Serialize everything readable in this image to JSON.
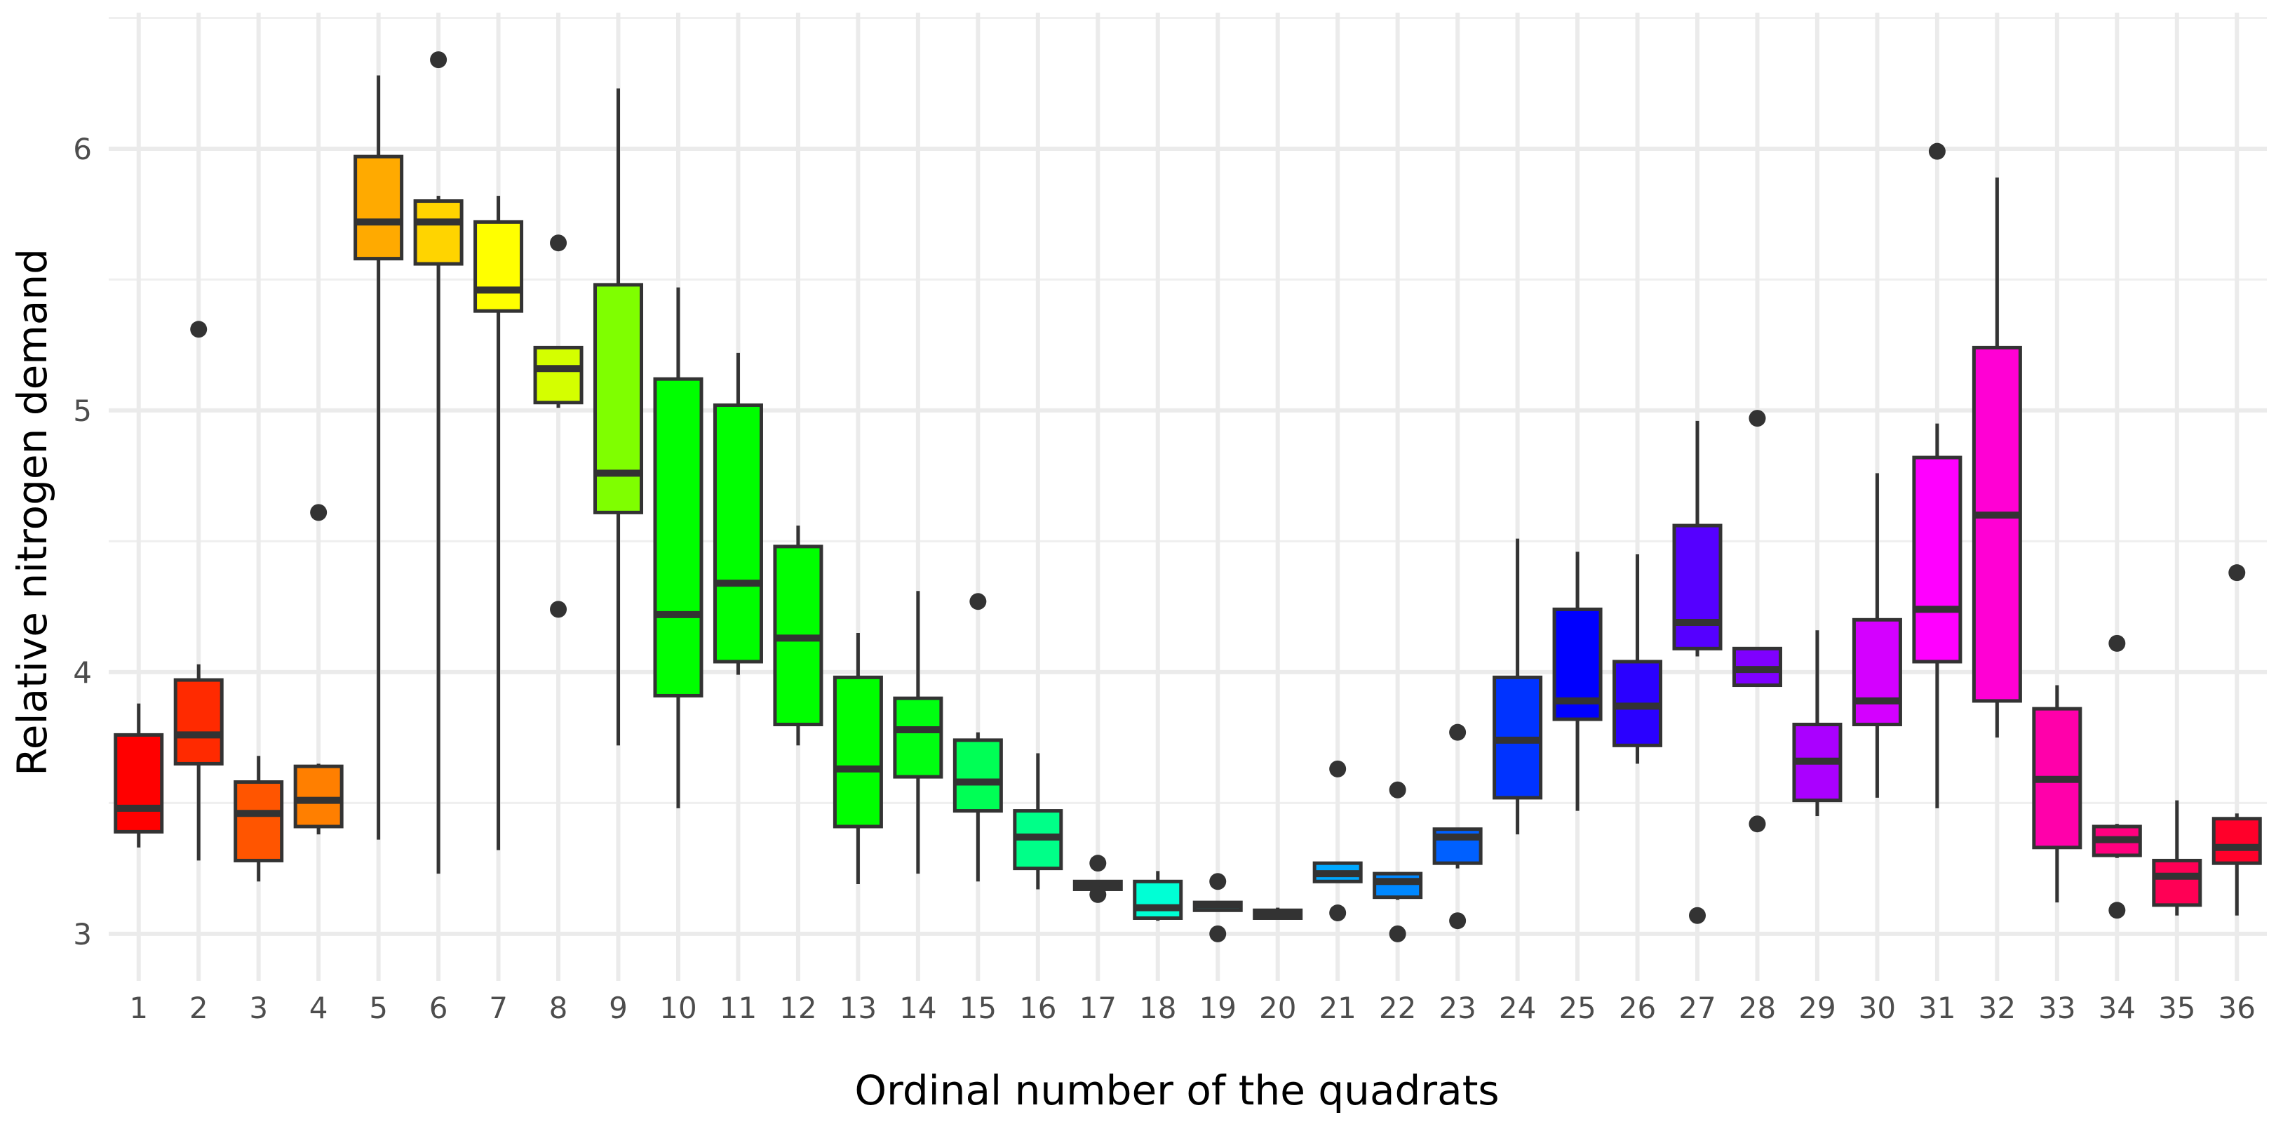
{
  "chart_data": {
    "type": "boxplot",
    "xlabel": "Ordinal number of the quadrats",
    "ylabel": "Relative nitrogen demand",
    "ylim": [
      2.82,
      6.52
    ],
    "yticks": [
      3,
      4,
      5,
      6
    ],
    "grid": true,
    "legend": "none",
    "categories": [
      "1",
      "2",
      "3",
      "4",
      "5",
      "6",
      "7",
      "8",
      "9",
      "10",
      "11",
      "12",
      "13",
      "14",
      "15",
      "16",
      "17",
      "18",
      "19",
      "20",
      "21",
      "22",
      "23",
      "24",
      "25",
      "26",
      "27",
      "28",
      "29",
      "30",
      "31",
      "32",
      "33",
      "34",
      "35",
      "36"
    ],
    "boxes": [
      {
        "category": "1",
        "min": 3.33,
        "q1": 3.39,
        "median": 3.48,
        "q3": 3.76,
        "max": 3.88,
        "outliers": [],
        "color": "#FF0000"
      },
      {
        "category": "2",
        "min": 3.28,
        "q1": 3.65,
        "median": 3.76,
        "q3": 3.97,
        "max": 4.03,
        "outliers": [
          5.31
        ],
        "color": "#FF2A00"
      },
      {
        "category": "3",
        "min": 3.2,
        "q1": 3.28,
        "median": 3.46,
        "q3": 3.58,
        "max": 3.68,
        "outliers": [],
        "color": "#FF5500"
      },
      {
        "category": "4",
        "min": 3.38,
        "q1": 3.41,
        "median": 3.51,
        "q3": 3.64,
        "max": 3.65,
        "outliers": [
          4.61
        ],
        "color": "#FF7F00"
      },
      {
        "category": "5",
        "min": 3.36,
        "q1": 5.58,
        "median": 5.72,
        "q3": 5.97,
        "max": 6.28,
        "outliers": [],
        "color": "#FFAA00"
      },
      {
        "category": "6",
        "min": 3.23,
        "q1": 5.56,
        "median": 5.72,
        "q3": 5.8,
        "max": 5.82,
        "outliers": [
          6.34
        ],
        "color": "#FFD400"
      },
      {
        "category": "7",
        "min": 3.32,
        "q1": 5.38,
        "median": 5.46,
        "q3": 5.72,
        "max": 5.82,
        "outliers": [],
        "color": "#FFFF00"
      },
      {
        "category": "8",
        "min": 5.01,
        "q1": 5.03,
        "median": 5.16,
        "q3": 5.24,
        "max": 5.24,
        "outliers": [
          5.64,
          4.24
        ],
        "color": "#D4FF00"
      },
      {
        "category": "9",
        "min": 3.72,
        "q1": 4.61,
        "median": 4.76,
        "q3": 5.48,
        "max": 6.23,
        "outliers": [],
        "color": "#7FFF00"
      },
      {
        "category": "10",
        "min": 3.48,
        "q1": 3.91,
        "median": 4.22,
        "q3": 5.12,
        "max": 5.47,
        "outliers": [],
        "color": "#00FF00"
      },
      {
        "category": "11",
        "min": 3.99,
        "q1": 4.04,
        "median": 4.34,
        "q3": 5.02,
        "max": 5.22,
        "outliers": [],
        "color": "#00FF00"
      },
      {
        "category": "12",
        "min": 3.72,
        "q1": 3.8,
        "median": 4.13,
        "q3": 4.48,
        "max": 4.56,
        "outliers": [],
        "color": "#00FF00"
      },
      {
        "category": "13",
        "min": 3.19,
        "q1": 3.41,
        "median": 3.63,
        "q3": 3.98,
        "max": 4.15,
        "outliers": [],
        "color": "#00FF00"
      },
      {
        "category": "14",
        "min": 3.23,
        "q1": 3.6,
        "median": 3.78,
        "q3": 3.9,
        "max": 4.31,
        "outliers": [],
        "color": "#00FF11"
      },
      {
        "category": "15",
        "min": 3.2,
        "q1": 3.47,
        "median": 3.58,
        "q3": 3.74,
        "max": 3.77,
        "outliers": [
          4.27
        ],
        "color": "#00FF55"
      },
      {
        "category": "16",
        "min": 3.17,
        "q1": 3.25,
        "median": 3.37,
        "q3": 3.47,
        "max": 3.69,
        "outliers": [],
        "color": "#00FF88"
      },
      {
        "category": "17",
        "min": 3.17,
        "q1": 3.17,
        "median": 3.19,
        "q3": 3.2,
        "max": 3.2,
        "outliers": [
          3.27,
          3.15
        ],
        "color": "#00FFB0"
      },
      {
        "category": "18",
        "min": 3.05,
        "q1": 3.06,
        "median": 3.1,
        "q3": 3.2,
        "max": 3.24,
        "outliers": [],
        "color": "#00FFD5"
      },
      {
        "category": "19",
        "min": 3.09,
        "q1": 3.09,
        "median": 3.11,
        "q3": 3.12,
        "max": 3.12,
        "outliers": [
          3.2,
          3.0
        ],
        "color": "#00E5FF"
      },
      {
        "category": "20",
        "min": 3.06,
        "q1": 3.06,
        "median": 3.08,
        "q3": 3.09,
        "max": 3.1,
        "outliers": [],
        "color": "#00C3FF"
      },
      {
        "category": "21",
        "min": 3.2,
        "q1": 3.2,
        "median": 3.23,
        "q3": 3.27,
        "max": 3.27,
        "outliers": [
          3.63,
          3.08
        ],
        "color": "#00A8FF"
      },
      {
        "category": "22",
        "min": 3.13,
        "q1": 3.14,
        "median": 3.2,
        "q3": 3.23,
        "max": 3.23,
        "outliers": [
          3.55,
          3.0
        ],
        "color": "#0088FF"
      },
      {
        "category": "23",
        "min": 3.25,
        "q1": 3.27,
        "median": 3.37,
        "q3": 3.4,
        "max": 3.4,
        "outliers": [
          3.77,
          3.05
        ],
        "color": "#0060FF"
      },
      {
        "category": "24",
        "min": 3.38,
        "q1": 3.52,
        "median": 3.74,
        "q3": 3.98,
        "max": 4.51,
        "outliers": [],
        "color": "#0033FF"
      },
      {
        "category": "25",
        "min": 3.47,
        "q1": 3.82,
        "median": 3.89,
        "q3": 4.24,
        "max": 4.46,
        "outliers": [],
        "color": "#0000FF"
      },
      {
        "category": "26",
        "min": 3.65,
        "q1": 3.72,
        "median": 3.87,
        "q3": 4.04,
        "max": 4.45,
        "outliers": [],
        "color": "#2A00FF"
      },
      {
        "category": "27",
        "min": 4.06,
        "q1": 4.09,
        "median": 4.19,
        "q3": 4.56,
        "max": 4.96,
        "outliers": [
          3.07
        ],
        "color": "#5500FF"
      },
      {
        "category": "28",
        "min": 3.95,
        "q1": 3.95,
        "median": 4.01,
        "q3": 4.09,
        "max": 4.09,
        "outliers": [
          4.97,
          3.42
        ],
        "color": "#7F00FF"
      },
      {
        "category": "29",
        "min": 3.45,
        "q1": 3.51,
        "median": 3.66,
        "q3": 3.8,
        "max": 4.16,
        "outliers": [],
        "color": "#AA00FF"
      },
      {
        "category": "30",
        "min": 3.52,
        "q1": 3.8,
        "median": 3.89,
        "q3": 4.2,
        "max": 4.76,
        "outliers": [],
        "color": "#D400FF"
      },
      {
        "category": "31",
        "min": 3.48,
        "q1": 4.04,
        "median": 4.24,
        "q3": 4.82,
        "max": 4.95,
        "outliers": [
          5.99
        ],
        "color": "#FF00FF"
      },
      {
        "category": "32",
        "min": 3.75,
        "q1": 3.89,
        "median": 4.6,
        "q3": 5.24,
        "max": 5.89,
        "outliers": [],
        "color": "#FF00D4"
      },
      {
        "category": "33",
        "min": 3.12,
        "q1": 3.33,
        "median": 3.59,
        "q3": 3.86,
        "max": 3.95,
        "outliers": [],
        "color": "#FF00AA"
      },
      {
        "category": "34",
        "min": 3.29,
        "q1": 3.3,
        "median": 3.36,
        "q3": 3.41,
        "max": 3.42,
        "outliers": [
          4.11,
          3.09
        ],
        "color": "#FF007F"
      },
      {
        "category": "35",
        "min": 3.07,
        "q1": 3.11,
        "median": 3.22,
        "q3": 3.28,
        "max": 3.51,
        "outliers": [],
        "color": "#FF0055"
      },
      {
        "category": "36",
        "min": 3.07,
        "q1": 3.27,
        "median": 3.33,
        "q3": 3.44,
        "max": 3.46,
        "outliers": [
          4.38
        ],
        "color": "#FF002A"
      }
    ]
  }
}
